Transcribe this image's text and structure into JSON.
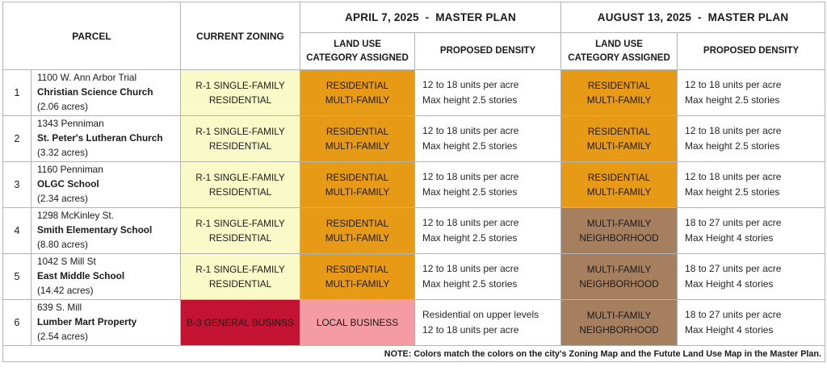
{
  "colors": {
    "light_yellow": "#FAFAC8",
    "orange": "#E79A15",
    "brown": "#A67F5F",
    "pink": "#F59CA2",
    "crimson": "#C21333"
  },
  "header": {
    "parcel": "PARCEL",
    "current_zoning": "CURRENT ZONING",
    "april_group": "APRIL 7, 2025  -  MASTER PLAN",
    "august_group": "AUGUST 13, 2025  -  MASTER PLAN",
    "land_use_line1": "LAND USE",
    "land_use_line2": "CATEGORY ASSIGNED",
    "proposed_density": "PROPOSED DENSITY"
  },
  "rows": [
    {
      "num": "1",
      "address": "1100 W. Ann Arbor Trial",
      "name": "Christian Science Church",
      "acres": "(2.06 acres)",
      "zoning": {
        "lines": [
          "R-1 SINGLE-FAMILY",
          "RESIDENTIAL"
        ],
        "color": "light_yellow"
      },
      "april_land_use": {
        "lines": [
          "RESIDENTIAL",
          "MULTI-FAMILY"
        ],
        "color": "orange"
      },
      "april_density": [
        "12 to 18 units per acre",
        "Max height 2.5 stories"
      ],
      "august_land_use": {
        "lines": [
          "RESIDENTIAL",
          "MULTI-FAMILY"
        ],
        "color": "orange"
      },
      "august_density": [
        "12 to 18 units per acre",
        "Max height 2.5 stories"
      ]
    },
    {
      "num": "2",
      "address": "1343 Penniman",
      "name": "St. Peter's Lutheran Church",
      "acres": "(3.32 acres)",
      "zoning": {
        "lines": [
          "R-1 SINGLE-FAMILY",
          "RESIDENTIAL"
        ],
        "color": "light_yellow"
      },
      "april_land_use": {
        "lines": [
          "RESIDENTIAL",
          "MULTI-FAMILY"
        ],
        "color": "orange"
      },
      "april_density": [
        "12 to 18 units per acre",
        "Max height 2.5 stories"
      ],
      "august_land_use": {
        "lines": [
          "RESIDENTIAL",
          "MULTI-FAMILY"
        ],
        "color": "orange"
      },
      "august_density": [
        "12 to 18 units per acre",
        "Max height 2.5 stories"
      ]
    },
    {
      "num": "3",
      "address": "1160 Penniman",
      "name": "OLGC School",
      "acres": "(2.34 acres)",
      "zoning": {
        "lines": [
          "R-1 SINGLE-FAMILY",
          "RESIDENTIAL"
        ],
        "color": "light_yellow"
      },
      "april_land_use": {
        "lines": [
          "RESIDENTIAL",
          "MULTI-FAMILY"
        ],
        "color": "orange"
      },
      "april_density": [
        "12 to 18 units per acre",
        "Max height 2.5 stories"
      ],
      "august_land_use": {
        "lines": [
          "RESIDENTIAL",
          "MULTI-FAMILY"
        ],
        "color": "orange"
      },
      "august_density": [
        "12 to 18 units per acre",
        "Max height 2.5 stories"
      ]
    },
    {
      "num": "4",
      "address": "1298 McKinley St.",
      "name": "Smith Elementary School",
      "acres": "(8.80 acres)",
      "zoning": {
        "lines": [
          "R-1 SINGLE-FAMILY",
          "RESIDENTIAL"
        ],
        "color": "light_yellow"
      },
      "april_land_use": {
        "lines": [
          "RESIDENTIAL",
          "MULTI-FAMILY"
        ],
        "color": "orange"
      },
      "april_density": [
        "12 to 18 units per acre",
        "Max height 2.5 stories"
      ],
      "august_land_use": {
        "lines": [
          "MULTI-FAMILY",
          "NEIGHBORHOOD"
        ],
        "color": "brown"
      },
      "august_density": [
        "18 to 27 units per acre",
        "Max Height 4 stories"
      ]
    },
    {
      "num": "5",
      "address": "1042 S Mill St",
      "name": "East Middle School",
      "acres": "(14.42 acres)",
      "zoning": {
        "lines": [
          "R-1 SINGLE-FAMILY",
          "RESIDENTIAL"
        ],
        "color": "light_yellow"
      },
      "april_land_use": {
        "lines": [
          "RESIDENTIAL",
          "MULTI-FAMILY"
        ],
        "color": "orange"
      },
      "april_density": [
        "12 to 18 units per acre",
        "Max height 2.5 stories"
      ],
      "august_land_use": {
        "lines": [
          "MULTI-FAMILY",
          "NEIGHBORHOOD"
        ],
        "color": "brown"
      },
      "august_density": [
        "18 to 27 units per acre",
        "Max Height 4 stories"
      ]
    },
    {
      "num": "6",
      "address": "639 S. Mill",
      "name": "Lumber Mart Property",
      "acres": "(2.54 acres)",
      "zoning": {
        "lines": [
          "B-3 GENERAL BUSINSS"
        ],
        "color": "crimson"
      },
      "april_land_use": {
        "lines": [
          "LOCAL BUSINESS"
        ],
        "color": "pink"
      },
      "april_density": [
        "Residential on upper levels",
        "12 to 18 units per acre"
      ],
      "august_land_use": {
        "lines": [
          "MULTI-FAMILY",
          "NEIGHBORHOOD"
        ],
        "color": "brown"
      },
      "august_density": [
        "18 to 27 units per acre",
        "Max Height 4 stories"
      ]
    }
  ],
  "note": "NOTE: Colors match the colors on the city's Zoning Map and the Futute Land Use Map in the Master Plan."
}
